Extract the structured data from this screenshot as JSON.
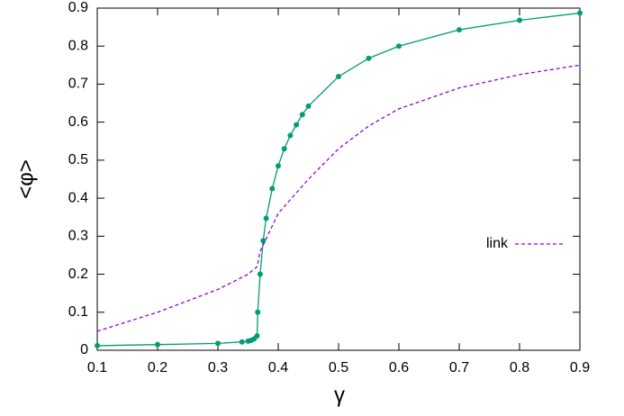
{
  "chart_data": {
    "type": "line",
    "x_label": "γ",
    "y_label": "<φ>",
    "xlim": [
      0.1,
      0.9
    ],
    "ylim": [
      0,
      0.9
    ],
    "xticks": [
      0.1,
      0.2,
      0.3,
      0.4,
      0.5,
      0.6,
      0.7,
      0.8,
      0.9
    ],
    "yticks": [
      0,
      0.1,
      0.2,
      0.3,
      0.4,
      0.5,
      0.6,
      0.7,
      0.8,
      0.9
    ],
    "grid": false,
    "legend": "right",
    "series": [
      {
        "color": "#009e73",
        "style": "solid",
        "markers": true,
        "x": [
          0.1,
          0.2,
          0.3,
          0.34,
          0.35,
          0.355,
          0.36,
          0.365,
          0.366,
          0.37,
          0.375,
          0.38,
          0.39,
          0.4,
          0.41,
          0.42,
          0.43,
          0.44,
          0.45,
          0.5,
          0.55,
          0.6,
          0.7,
          0.8,
          0.9
        ],
        "values": [
          0.012,
          0.015,
          0.018,
          0.022,
          0.024,
          0.026,
          0.03,
          0.038,
          0.1,
          0.2,
          0.288,
          0.347,
          0.425,
          0.485,
          0.53,
          0.565,
          0.593,
          0.62,
          0.642,
          0.72,
          0.768,
          0.8,
          0.843,
          0.868,
          0.887
        ]
      },
      {
        "name": "link",
        "color": "#9400d3",
        "style": "dashed",
        "markers": false,
        "x": [
          0.1,
          0.2,
          0.3,
          0.35,
          0.365,
          0.37,
          0.4,
          0.45,
          0.5,
          0.55,
          0.6,
          0.7,
          0.8,
          0.9
        ],
        "values": [
          0.05,
          0.1,
          0.16,
          0.2,
          0.22,
          0.26,
          0.36,
          0.45,
          0.53,
          0.59,
          0.635,
          0.69,
          0.725,
          0.75
        ]
      }
    ]
  }
}
